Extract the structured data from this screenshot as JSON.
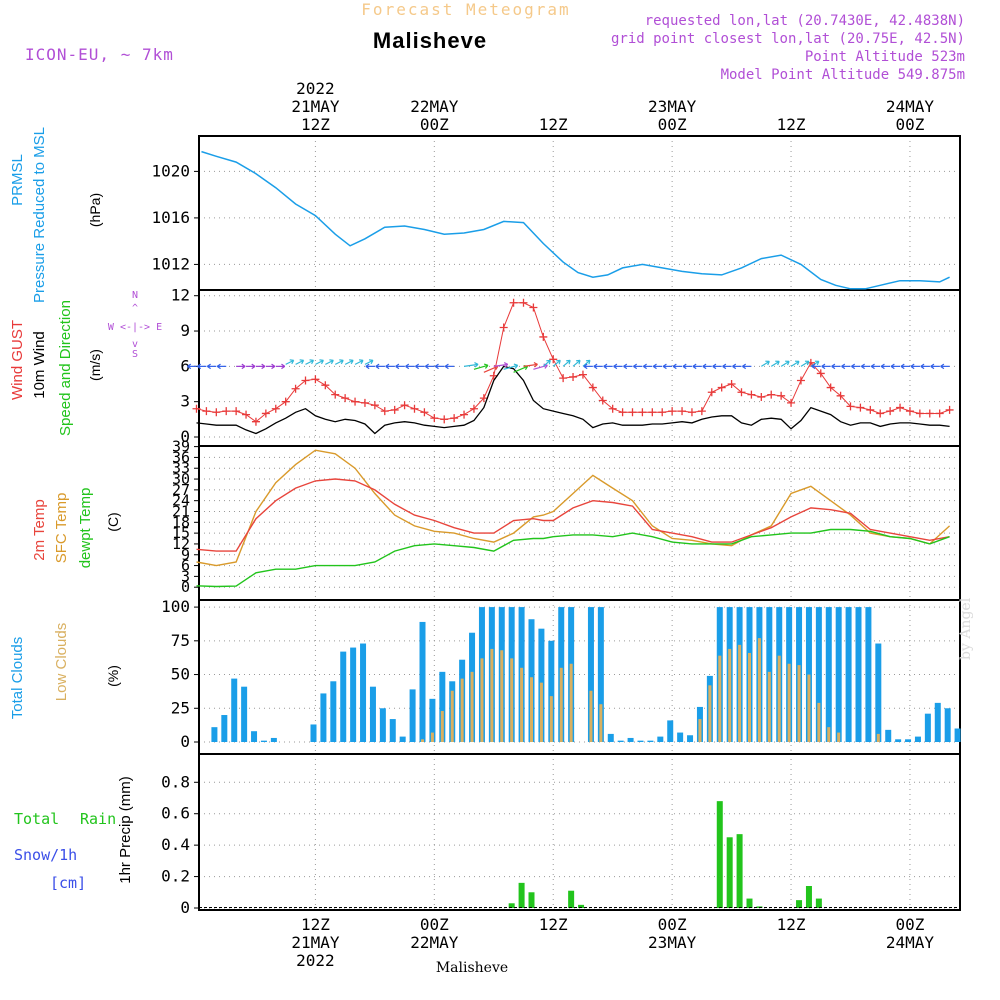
{
  "header": {
    "product_title": "Forecast Meteogram",
    "location": "Malisheve",
    "model": "ICON-EU, ~ 7km",
    "requested": "requested lon,lat (20.7430E, 42.4838N)",
    "grid_point": "grid point closest lon,lat (20.75E, 42.5N)",
    "point_altitude": "Point Altitude 523m",
    "model_altitude": "Model Point Altitude 549.875m",
    "footer_location": "Malisheve",
    "watermark": "by Angel"
  },
  "colors": {
    "pressure": "#1a9ee8",
    "gust": "#e83a3a",
    "wind": "#000000",
    "wind_arrows": "#2f5ee8",
    "temp": "#e8453c",
    "sfc_temp": "#d99a2b",
    "dewpt": "#22c41c",
    "total_clouds": "#1a9ee8",
    "low_clouds": "#d9b060",
    "rain": "#22c41c",
    "snow": "#3a4ee8",
    "labels_purple": "#b14fd6",
    "title_orange": "#f5c98a"
  },
  "time_axis": {
    "top_labels": [
      {
        "lines": [
          "2022",
          "21MAY",
          "12Z"
        ],
        "hour": 12
      },
      {
        "lines": [
          "22MAY",
          "00Z"
        ],
        "hour": 24
      },
      {
        "lines": [
          "12Z"
        ],
        "hour": 36
      },
      {
        "lines": [
          "23MAY",
          "00Z"
        ],
        "hour": 48
      },
      {
        "lines": [
          "12Z"
        ],
        "hour": 60
      },
      {
        "lines": [
          "24MAY",
          "00Z"
        ],
        "hour": 72
      }
    ],
    "bottom_labels": [
      {
        "lines": [
          "12Z",
          "21MAY",
          "2022"
        ],
        "hour": 12
      },
      {
        "lines": [
          "00Z",
          "22MAY"
        ],
        "hour": 24
      },
      {
        "lines": [
          "12Z"
        ],
        "hour": 36
      },
      {
        "lines": [
          "00Z",
          "23MAY"
        ],
        "hour": 48
      },
      {
        "lines": [
          "12Z"
        ],
        "hour": 60
      },
      {
        "lines": [
          "00Z",
          "24MAY"
        ],
        "hour": 72
      }
    ]
  },
  "chart_data": [
    {
      "type": "line",
      "title": "PRMSL Pressure Reduced to MSL",
      "ylabel": "(hPa)",
      "yticks": [
        "1012",
        "1016",
        "1020"
      ],
      "ylim": [
        1009.8,
        1022.7
      ],
      "x_hours": [
        0.5,
        2,
        4,
        6,
        8,
        10,
        12,
        14,
        15.5,
        17,
        19,
        21,
        23,
        25,
        27,
        29,
        31,
        33,
        35,
        37,
        38.5,
        40,
        41.5,
        43,
        45,
        47,
        49,
        51,
        53,
        55,
        57,
        59,
        61,
        63,
        64.5,
        66,
        67.5,
        69,
        71,
        73,
        75,
        76
      ],
      "series": [
        {
          "name": "PRMSL",
          "values": [
            1021.7,
            1021.3,
            1020.8,
            1019.8,
            1018.6,
            1017.2,
            1016.2,
            1014.6,
            1013.6,
            1014.2,
            1015.2,
            1015.3,
            1015.0,
            1014.6,
            1014.7,
            1015.0,
            1015.7,
            1015.6,
            1013.8,
            1012.2,
            1011.3,
            1010.9,
            1011.1,
            1011.7,
            1012.0,
            1011.7,
            1011.4,
            1011.2,
            1011.1,
            1011.7,
            1012.5,
            1012.8,
            1012.0,
            1010.7,
            1010.2,
            1009.9,
            1009.9,
            1010.2,
            1010.6,
            1010.6,
            1010.5,
            1010.9
          ]
        }
      ]
    },
    {
      "type": "line",
      "title": "Wind GUST / 10m Wind Speed and Direction",
      "ylabel": "(m/s)",
      "yticks": [
        "0",
        "3",
        "6",
        "9",
        "12"
      ],
      "ylim": [
        0,
        12.4
      ],
      "compass": "N / W <-|-> E / S",
      "x_hours": [
        0,
        1,
        2,
        3,
        4,
        5,
        6,
        7,
        8,
        9,
        10,
        11,
        12,
        13,
        14,
        15,
        16,
        17,
        18,
        19,
        20,
        21,
        22,
        23,
        24,
        25,
        26,
        27,
        28,
        29,
        30,
        31,
        32,
        33,
        34,
        35,
        36,
        37,
        38,
        39,
        40,
        41,
        42,
        43,
        44,
        45,
        46,
        47,
        48,
        49,
        50,
        51,
        52,
        53,
        54,
        55,
        56,
        57,
        58,
        59,
        60,
        61,
        62,
        63,
        64,
        65,
        66,
        67,
        68,
        69,
        70,
        71,
        72,
        73,
        74,
        75,
        76
      ],
      "series": [
        {
          "name": "Wind GUST",
          "values": [
            2.4,
            2.2,
            2.1,
            2.2,
            2.2,
            1.9,
            1.3,
            2.0,
            2.4,
            3.0,
            4.1,
            4.8,
            4.9,
            4.4,
            3.6,
            3.3,
            3.0,
            2.9,
            2.7,
            2.2,
            2.3,
            2.7,
            2.4,
            2.1,
            1.6,
            1.5,
            1.6,
            1.9,
            2.4,
            3.3,
            5.2,
            9.3,
            11.4,
            11.4,
            11.0,
            8.5,
            6.6,
            5.0,
            5.1,
            5.3,
            4.2,
            3.1,
            2.4,
            2.1,
            2.1,
            2.1,
            2.1,
            2.1,
            2.2,
            2.2,
            2.1,
            2.2,
            3.8,
            4.2,
            4.5,
            3.8,
            3.6,
            3.4,
            3.6,
            3.5,
            2.9,
            4.8,
            6.3,
            5.4,
            4.2,
            3.5,
            2.6,
            2.5,
            2.3,
            2.0,
            2.2,
            2.5,
            2.2,
            2.0,
            2.0,
            2.0,
            2.3
          ]
        },
        {
          "name": "10m Wind",
          "values": [
            1.2,
            1.1,
            1.0,
            1.0,
            1.0,
            0.6,
            0.3,
            0.7,
            1.2,
            1.6,
            2.1,
            2.4,
            1.8,
            1.5,
            1.3,
            1.5,
            1.4,
            1.1,
            0.3,
            1.0,
            1.2,
            1.3,
            1.2,
            1.0,
            0.9,
            0.8,
            0.9,
            1.0,
            1.4,
            2.5,
            4.8,
            6.0,
            5.8,
            4.8,
            3.1,
            2.4,
            2.2,
            2.0,
            1.8,
            1.5,
            0.8,
            1.1,
            1.2,
            1.0,
            1.0,
            1.0,
            1.1,
            1.1,
            1.2,
            1.3,
            1.2,
            1.5,
            1.7,
            1.8,
            1.8,
            1.2,
            1.0,
            1.5,
            1.6,
            1.5,
            0.7,
            1.4,
            2.5,
            2.2,
            1.9,
            1.3,
            1.0,
            1.2,
            1.2,
            0.9,
            1.1,
            1.2,
            1.2,
            1.1,
            1.0,
            1.0,
            0.9
          ]
        }
      ],
      "direction_arrows": "wind direction barbs at 6 m/s level"
    },
    {
      "type": "line",
      "title": "2m Temp / SFC Temp / dewpt Temp",
      "ylabel": "(C)",
      "yticks": [
        "0",
        "3",
        "6",
        "9",
        "12",
        "15",
        "18",
        "21",
        "24",
        "27",
        "30",
        "33",
        "36",
        "39"
      ],
      "ylim": [
        -0.5,
        40
      ],
      "x_hours": [
        0,
        2,
        4,
        6,
        8,
        10,
        12,
        14,
        16,
        18,
        20,
        22,
        24,
        26,
        28,
        30,
        32,
        34,
        35,
        36,
        38,
        40,
        42,
        44,
        46,
        48,
        50,
        52,
        54,
        56,
        58,
        60,
        62,
        64,
        66,
        68,
        70,
        72,
        74,
        76
      ],
      "series": [
        {
          "name": "2m Temp",
          "values": [
            10.5,
            10,
            10,
            19,
            24,
            27.5,
            29.5,
            30,
            29.5,
            27,
            23,
            20,
            18.5,
            16.5,
            15,
            15,
            18.5,
            19,
            18.5,
            18.5,
            22,
            24,
            23.5,
            22.5,
            16,
            15,
            14,
            12.5,
            12.5,
            14.5,
            16.5,
            19.5,
            22,
            21.5,
            20.5,
            16,
            15,
            14,
            13,
            14
          ]
        },
        {
          "name": "SFC Temp",
          "values": [
            7,
            6,
            7,
            21,
            29,
            34,
            38,
            37,
            33,
            26,
            20,
            17,
            15.5,
            15,
            13.5,
            12.5,
            15,
            19.5,
            20,
            21,
            26,
            31,
            27.5,
            24,
            17,
            13.5,
            13,
            12,
            11.5,
            14.5,
            17,
            26,
            28,
            24,
            20,
            15,
            14,
            13.5,
            12,
            17
          ]
        },
        {
          "name": "dewpt Temp",
          "values": [
            0.4,
            0.2,
            0.3,
            4,
            5,
            5,
            6,
            6,
            6,
            7,
            10,
            11.5,
            12,
            11.5,
            11,
            10,
            13,
            13.5,
            13.5,
            14,
            14.5,
            14.5,
            14,
            15,
            14,
            12.5,
            12,
            12,
            12,
            14,
            14.5,
            15,
            15,
            16,
            16,
            15.5,
            14,
            13.5,
            12,
            14
          ]
        }
      ]
    },
    {
      "type": "bar",
      "title": "Total Clouds / Low Clouds",
      "ylabel": "(%)",
      "yticks": [
        "0",
        "25",
        "50",
        "75",
        "100"
      ],
      "ylim": [
        0,
        106
      ],
      "x_hours": [
        0,
        1,
        2,
        3,
        4,
        5,
        6,
        7,
        8,
        9,
        10,
        11,
        12,
        13,
        14,
        15,
        16,
        17,
        18,
        19,
        20,
        21,
        22,
        23,
        24,
        25,
        26,
        27,
        28,
        29,
        30,
        31,
        32,
        33,
        34,
        35,
        36,
        37,
        38,
        39,
        40,
        41,
        42,
        43,
        44,
        45,
        46,
        47,
        48,
        49,
        50,
        51,
        52,
        53,
        54,
        55,
        56,
        57,
        58,
        59,
        60,
        61,
        62,
        63,
        64,
        65,
        66,
        67,
        68,
        69,
        70,
        71,
        72,
        73,
        74,
        75,
        76
      ],
      "series": [
        {
          "name": "Total Clouds",
          "values": [
            0,
            11,
            20,
            47,
            41,
            8,
            1,
            3,
            0,
            0,
            0,
            13,
            36,
            45,
            67,
            70,
            73,
            41,
            25,
            17,
            4,
            39,
            89,
            32,
            52,
            45,
            61,
            81,
            100,
            100,
            100,
            100,
            100,
            91,
            84,
            75,
            100,
            100,
            0,
            100,
            100,
            6,
            1,
            3,
            1,
            1,
            4,
            16,
            7,
            5,
            26,
            49,
            100,
            100,
            100,
            100,
            100,
            100,
            100,
            100,
            100,
            100,
            100,
            100,
            100,
            100,
            100,
            100,
            73,
            9,
            2,
            2,
            4,
            21,
            29,
            25,
            10
          ]
        },
        {
          "name": "Low Clouds",
          "values": [
            0,
            0,
            0,
            0,
            0,
            0,
            0,
            0,
            0,
            0,
            0,
            0,
            0,
            0,
            0,
            0,
            0,
            0,
            0,
            0,
            0,
            0,
            2,
            7,
            23,
            38,
            47,
            52,
            62,
            69,
            68,
            62,
            55,
            48,
            44,
            34,
            55,
            58,
            0,
            38,
            28,
            0,
            0,
            0,
            0,
            0,
            0,
            0,
            0,
            0,
            17,
            42,
            64,
            69,
            72,
            66,
            77,
            52,
            64,
            58,
            57,
            50,
            29,
            11,
            7,
            0,
            0,
            0,
            6,
            0,
            0,
            0,
            0,
            0,
            0,
            0,
            0
          ]
        }
      ]
    },
    {
      "type": "bar",
      "title": "Total Rain / Snow/1h [cm]",
      "ylabel": "1hr Precip (mm)",
      "yticks": [
        "0",
        "0.2",
        "0.4",
        "0.6",
        "0.8"
      ],
      "ylim": [
        0,
        0.98
      ],
      "x_hours": [
        31,
        32,
        33,
        37,
        38,
        52,
        53,
        54,
        55,
        56,
        60,
        61,
        62
      ],
      "series": [
        {
          "name": "Total Rain",
          "values": [
            0.03,
            0.16,
            0.1,
            0.11,
            0.02,
            0.68,
            0.45,
            0.47,
            0.06,
            0.01,
            0.05,
            0.14,
            0.06
          ]
        }
      ]
    }
  ]
}
